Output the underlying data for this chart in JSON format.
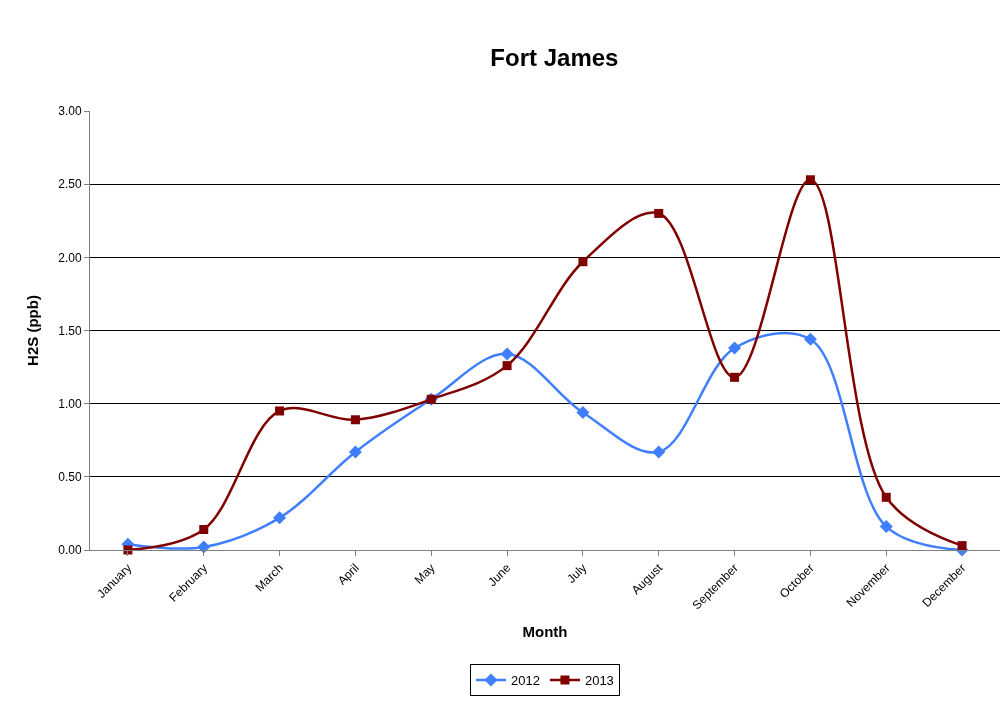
{
  "chart_data": {
    "type": "line",
    "title": "Fort James",
    "xlabel": "Month",
    "ylabel": "H2S (ppb)",
    "categories": [
      "January",
      "February",
      "March",
      "April",
      "May",
      "June",
      "July",
      "August",
      "September",
      "October",
      "November",
      "December"
    ],
    "series": [
      {
        "name": "2012",
        "color": "#3f7fff",
        "marker": "diamond",
        "values": [
          0.04,
          0.02,
          0.22,
          0.67,
          1.03,
          1.34,
          0.94,
          0.67,
          1.38,
          1.44,
          0.16,
          0.0
        ]
      },
      {
        "name": "2013",
        "color": "#800000",
        "marker": "square",
        "values": [
          0.0,
          0.14,
          0.95,
          0.89,
          1.03,
          1.26,
          1.97,
          2.3,
          1.18,
          2.53,
          0.36,
          0.03
        ]
      }
    ],
    "ylim": [
      0,
      3
    ],
    "yticks": [
      {
        "value": 0,
        "label": "0.00"
      },
      {
        "value": 0.5,
        "label": "0.50"
      },
      {
        "value": 1,
        "label": "1.00"
      },
      {
        "value": 1.5,
        "label": "1.50"
      },
      {
        "value": 2,
        "label": "2.00"
      },
      {
        "value": 2.5,
        "label": "2.50"
      },
      {
        "value": 3,
        "label": "3.00"
      }
    ],
    "grid": "y",
    "legend": "bottom",
    "line_style": "solid"
  }
}
